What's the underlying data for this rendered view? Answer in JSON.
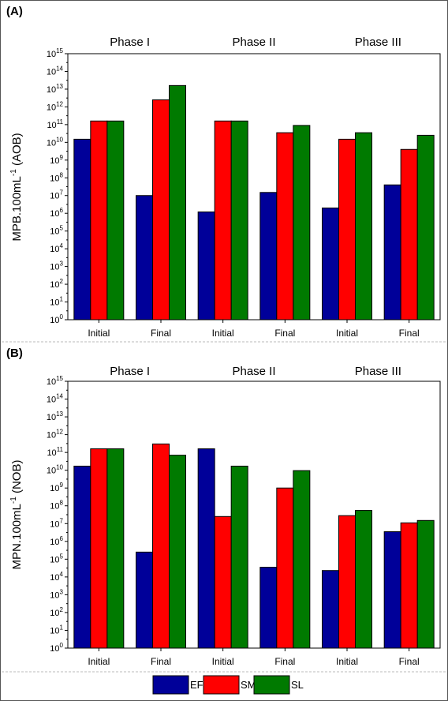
{
  "legend": [
    {
      "key": "EF",
      "label": "EF",
      "color": "#000099"
    },
    {
      "key": "SM",
      "label": "SM",
      "color": "#ff0000"
    },
    {
      "key": "SL",
      "label": "SL",
      "color": "#007a00"
    }
  ],
  "chart_data": [
    {
      "type": "bar",
      "panel_label": "(A)",
      "ylabel": "MPB.100mL",
      "ylabel_exp": "-1",
      "ylabel_suffix": "(AOB)",
      "yscale": "log",
      "ylim": [
        1,
        1000000000000000.0
      ],
      "y_tick_exponents": [
        0,
        1,
        2,
        3,
        4,
        5,
        6,
        7,
        8,
        9,
        10,
        11,
        12,
        13,
        14,
        15
      ],
      "groups": [
        "Phase I",
        "Phase II",
        "Phase III"
      ],
      "categories": [
        "Initial",
        "Final",
        "Initial",
        "Final",
        "Initial",
        "Final"
      ],
      "series": [
        {
          "name": "EF",
          "values": [
            15000000000.0,
            10000000.0,
            1200000.0,
            15000000.0,
            2000000.0,
            40000000.0
          ]
        },
        {
          "name": "SM",
          "values": [
            160000000000.0,
            2500000000000.0,
            160000000000.0,
            35000000000.0,
            15000000000.0,
            4000000000.0
          ]
        },
        {
          "name": "SL",
          "values": [
            160000000000.0,
            16000000000000.0,
            160000000000.0,
            90000000000.0,
            35000000000.0,
            25000000000.0
          ]
        }
      ]
    },
    {
      "type": "bar",
      "panel_label": "(B)",
      "ylabel": "MPN.100mL",
      "ylabel_exp": "-1",
      "ylabel_suffix": "(NOB)",
      "yscale": "log",
      "ylim": [
        1,
        1000000000000000.0
      ],
      "y_tick_exponents": [
        0,
        1,
        2,
        3,
        4,
        5,
        6,
        7,
        8,
        9,
        10,
        11,
        12,
        13,
        14,
        15
      ],
      "groups": [
        "Phase I",
        "Phase II",
        "Phase III"
      ],
      "categories": [
        "Initial",
        "Final",
        "Initial",
        "Final",
        "Initial",
        "Final"
      ],
      "series": [
        {
          "name": "EF",
          "values": [
            17000000000.0,
            250000.0,
            160000000000.0,
            35000.0,
            23000.0,
            3500000.0
          ]
        },
        {
          "name": "SM",
          "values": [
            160000000000.0,
            300000000000.0,
            25000000.0,
            1000000000.0,
            28000000.0,
            11000000.0
          ]
        },
        {
          "name": "SL",
          "values": [
            160000000000.0,
            70000000000.0,
            17000000000.0,
            9500000000.0,
            55000000.0,
            15000000.0
          ]
        }
      ]
    }
  ]
}
